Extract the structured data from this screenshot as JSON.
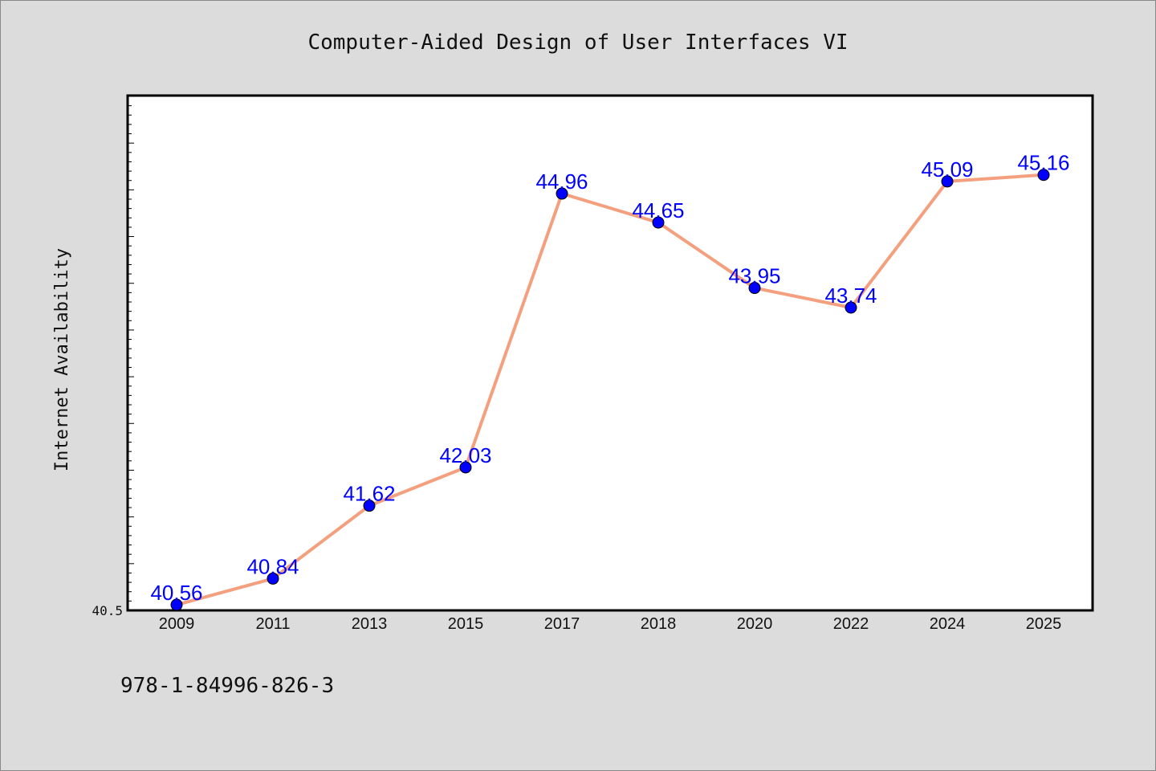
{
  "chart_data": {
    "type": "line",
    "title": "Computer-Aided Design of User Interfaces VI",
    "xlabel": "",
    "ylabel": "Internet Availability",
    "categories": [
      "2009",
      "2011",
      "2013",
      "2015",
      "2017",
      "2018",
      "2020",
      "2022",
      "2024",
      "2025"
    ],
    "series": [
      {
        "values": [
          40.56,
          40.84,
          41.62,
          42.03,
          44.96,
          44.65,
          43.95,
          43.74,
          45.09,
          45.16
        ]
      }
    ],
    "data_labels": [
      "40.56",
      "40.84",
      "41.62",
      "42.03",
      "44.96",
      "44.65",
      "43.95",
      "43.74",
      "45.09",
      "45.16"
    ],
    "ylim": [
      40.5,
      46.0
    ],
    "y_tick_labels": [
      "40.5"
    ],
    "grid": false,
    "colors": {
      "line": "#f4a07e",
      "marker": "#0000ff",
      "data_label": "#0000ff",
      "background": "#dcdcdc",
      "plot_background": "#ffffff"
    }
  },
  "footnote": "978-1-84996-826-3"
}
